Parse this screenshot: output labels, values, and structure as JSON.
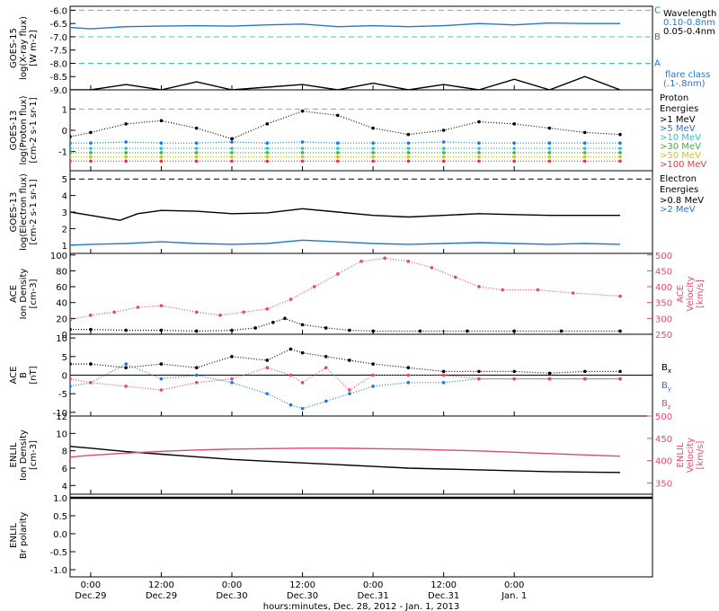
{
  "colors": {
    "black": "#000000",
    "blue": "#1e78d8",
    "cyan": "#1ec8d8",
    "dash_cyan": "#30c8e0",
    "teal": "#00b4b4",
    "green": "#3cb43c",
    "yellow": "#d2c800",
    "orange": "#f08c00",
    "red": "#e03c3c",
    "pink": "#e8466e"
  },
  "x_axis": {
    "label": "hours:minutes, Dec. 28, 2012 - Jan. 1, 2013",
    "range_hours": [
      -3.5,
      95.5
    ],
    "ticks": [
      {
        "hours": 0,
        "time": "0:00",
        "date": "Dec.29"
      },
      {
        "hours": 12,
        "time": "12:00",
        "date": "Dec.29"
      },
      {
        "hours": 24,
        "time": "0:00",
        "date": "Dec.30"
      },
      {
        "hours": 36,
        "time": "12:00",
        "date": "Dec.30"
      },
      {
        "hours": 48,
        "time": "0:00",
        "date": "Dec.31"
      },
      {
        "hours": 60,
        "time": "12:00",
        "date": "Dec.31"
      },
      {
        "hours": 72,
        "time": "0:00",
        "date": "Jan. 1"
      }
    ]
  },
  "legends": {
    "xray": {
      "title": "Wavelength",
      "series": [
        {
          "label": "0.10-0.8nm",
          "color": "#1e78d8"
        },
        {
          "label": "0.05-0.4nm",
          "color": "#000000"
        }
      ],
      "flare_title": "flare class",
      "flare_range": "(.1-.8nm)",
      "flare_levels": [
        {
          "letter": "C",
          "value": -6.0
        },
        {
          "letter": "B",
          "value": -7.0
        },
        {
          "letter": "A",
          "value": -8.0
        }
      ]
    },
    "proton": {
      "title_line1": "Proton",
      "title_line2": "Energies",
      "series": [
        {
          "label": ">1 MeV",
          "color": "#000000"
        },
        {
          "label": ">5 MeV",
          "color": "#1e78d8"
        },
        {
          "label": ">10 MeV",
          "color": "#1ec8d8"
        },
        {
          "label": ">30 MeV",
          "color": "#3cb43c"
        },
        {
          "label": ">50 MeV",
          "color": "#d2c800"
        },
        {
          "label": ">100 MeV",
          "color": "#e03c3c"
        }
      ]
    },
    "electron": {
      "title_line1": "Electron",
      "title_line2": "Energies",
      "series": [
        {
          "label": ">0.8 MeV",
          "color": "#000000"
        },
        {
          "label": ">2 MeV",
          "color": "#1e78d8"
        }
      ]
    },
    "field": {
      "series": [
        {
          "base": "B",
          "sub": "x",
          "color": "#000000"
        },
        {
          "base": "B",
          "sub": "y",
          "color": "#1e78d8"
        },
        {
          "base": "B",
          "sub": "z",
          "color": "#e8466e"
        }
      ]
    }
  },
  "chart_data": [
    {
      "type": "line",
      "id": "xray",
      "ylabel": "GOES-15 log(X-ray flux) [W m-2]",
      "ylim": [
        -9.0,
        -5.85
      ],
      "y_ticks": [
        "-6.0",
        "-6.5",
        "-7.0",
        "-7.5",
        "-8.0",
        "-8.5",
        "-9.0"
      ],
      "y_tick_values": [
        -6.0,
        -6.5,
        -7.0,
        -7.5,
        -8.0,
        -8.5,
        -9.0
      ],
      "reference_lines": [
        -6.0,
        -7.0,
        -8.0
      ],
      "series": [
        {
          "name": "0.10-0.8nm",
          "x": [
            -3.5,
            0,
            6,
            12,
            18,
            24,
            30,
            36,
            42,
            48,
            54,
            60,
            66,
            72,
            78,
            84,
            90
          ],
          "y": [
            -6.65,
            -6.7,
            -6.62,
            -6.6,
            -6.58,
            -6.6,
            -6.55,
            -6.52,
            -6.62,
            -6.58,
            -6.62,
            -6.58,
            -6.5,
            -6.55,
            -6.48,
            -6.5,
            -6.5
          ]
        },
        {
          "name": "0.05-0.4nm",
          "x": [
            -3.5,
            0,
            6,
            12,
            18,
            24,
            30,
            36,
            42,
            48,
            54,
            60,
            66,
            72,
            78,
            84,
            90
          ],
          "y": [
            -9.0,
            -9.0,
            -8.8,
            -9.0,
            -8.7,
            -9.0,
            -8.9,
            -8.8,
            -9.0,
            -8.75,
            -9.0,
            -8.8,
            -9.0,
            -8.6,
            -9.0,
            -8.5,
            -9.0
          ]
        }
      ]
    },
    {
      "type": "scatter",
      "id": "proton",
      "ylabel": "GOES-13 log(Proton flux) [cm-2 s-1 sr-1]",
      "ylim": [
        -1.9,
        1.9
      ],
      "y_ticks": [
        "1",
        "0",
        "-1"
      ],
      "y_tick_values": [
        1,
        0,
        -1
      ],
      "reference_lines": [
        1
      ],
      "series": [
        {
          "name": ">1 MeV",
          "x": [
            -3.5,
            0,
            6,
            12,
            18,
            24,
            30,
            36,
            42,
            48,
            54,
            60,
            66,
            72,
            78,
            84,
            90
          ],
          "y": [
            -0.3,
            -0.1,
            0.3,
            0.45,
            0.1,
            -0.4,
            0.3,
            0.9,
            0.7,
            0.1,
            -0.2,
            0.0,
            0.4,
            0.3,
            0.1,
            -0.1,
            -0.2
          ]
        },
        {
          "name": ">5 MeV",
          "x": [
            -3.5,
            0,
            6,
            12,
            18,
            24,
            30,
            36,
            42,
            48,
            54,
            60,
            66,
            72,
            78,
            84,
            90
          ],
          "y": [
            -0.6,
            -0.6,
            -0.55,
            -0.6,
            -0.6,
            -0.55,
            -0.6,
            -0.55,
            -0.6,
            -0.6,
            -0.6,
            -0.55,
            -0.6,
            -0.6,
            -0.6,
            -0.6,
            -0.6
          ]
        },
        {
          "name": ">10 MeV",
          "x": [
            -3.5,
            0,
            6,
            12,
            18,
            24,
            30,
            36,
            42,
            48,
            54,
            60,
            66,
            72,
            78,
            84,
            90
          ],
          "y": [
            -0.85,
            -0.85,
            -0.85,
            -0.85,
            -0.85,
            -0.85,
            -0.85,
            -0.85,
            -0.85,
            -0.85,
            -0.85,
            -0.85,
            -0.85,
            -0.85,
            -0.85,
            -0.85,
            -0.85
          ]
        },
        {
          "name": ">30 MeV",
          "x": [
            -3.5,
            0,
            6,
            12,
            18,
            24,
            30,
            36,
            42,
            48,
            54,
            60,
            66,
            72,
            78,
            84,
            90
          ],
          "y": [
            -1.05,
            -1.05,
            -1.05,
            -1.05,
            -1.05,
            -1.05,
            -1.05,
            -1.05,
            -1.05,
            -1.05,
            -1.05,
            -1.05,
            -1.05,
            -1.05,
            -1.05,
            -1.05,
            -1.05
          ]
        },
        {
          "name": ">50 MeV",
          "x": [
            -3.5,
            0,
            6,
            12,
            18,
            24,
            30,
            36,
            42,
            48,
            54,
            60,
            66,
            72,
            78,
            84,
            90
          ],
          "y": [
            -1.25,
            -1.25,
            -1.25,
            -1.25,
            -1.25,
            -1.25,
            -1.25,
            -1.25,
            -1.25,
            -1.25,
            -1.25,
            -1.25,
            -1.25,
            -1.25,
            -1.25,
            -1.25,
            -1.25
          ]
        },
        {
          "name": ">100 MeV",
          "x": [
            -3.5,
            0,
            6,
            12,
            18,
            24,
            30,
            36,
            42,
            48,
            54,
            60,
            66,
            72,
            78,
            84,
            90
          ],
          "y": [
            -1.45,
            -1.45,
            -1.45,
            -1.45,
            -1.45,
            -1.45,
            -1.45,
            -1.45,
            -1.45,
            -1.45,
            -1.45,
            -1.45,
            -1.45,
            -1.45,
            -1.45,
            -1.45,
            -1.45
          ]
        }
      ]
    },
    {
      "type": "line",
      "id": "electron",
      "ylabel": "GOES-13 log(Electron flux) [cm-2 s-1 sr-1]",
      "ylim": [
        0.5,
        5.5
      ],
      "y_ticks": [
        "5",
        "4",
        "3",
        "2",
        "1"
      ],
      "y_tick_values": [
        5,
        4,
        3,
        2,
        1
      ],
      "reference_lines": [
        5
      ],
      "series": [
        {
          "name": ">0.8 MeV",
          "x": [
            -3.5,
            0,
            5,
            8,
            12,
            18,
            24,
            30,
            36,
            42,
            48,
            54,
            60,
            66,
            72,
            78,
            84,
            90
          ],
          "y": [
            3.0,
            2.8,
            2.5,
            2.9,
            3.1,
            3.05,
            2.9,
            2.95,
            3.2,
            3.0,
            2.8,
            2.7,
            2.8,
            2.9,
            2.85,
            2.8,
            2.8,
            2.8
          ]
        },
        {
          "name": ">2 MeV",
          "x": [
            -3.5,
            0,
            6,
            12,
            18,
            24,
            30,
            36,
            42,
            48,
            54,
            60,
            66,
            72,
            78,
            84,
            90
          ],
          "y": [
            1.0,
            1.05,
            1.1,
            1.2,
            1.1,
            1.05,
            1.1,
            1.3,
            1.2,
            1.1,
            1.05,
            1.1,
            1.15,
            1.1,
            1.05,
            1.1,
            1.05
          ]
        }
      ]
    },
    {
      "type": "scatter",
      "id": "ace_plasma",
      "ylabel": "ACE Ion Density [cm-3]",
      "ylabel_right": "ACE Velocity [km/s]",
      "ylim": [
        0,
        102
      ],
      "ylim_right": [
        250,
        505
      ],
      "y_ticks": [
        "100",
        "80",
        "60",
        "40",
        "20",
        "0"
      ],
      "y_tick_values": [
        100,
        80,
        60,
        40,
        20,
        0
      ],
      "y_ticks_right": [
        "500",
        "450",
        "400",
        "350",
        "300",
        "250"
      ],
      "y_tick_values_right": [
        500,
        450,
        400,
        350,
        300,
        250
      ],
      "series": [
        {
          "name": "density",
          "axis": "left",
          "x": [
            -3.5,
            0,
            6,
            12,
            18,
            24,
            28,
            31,
            33,
            36,
            40,
            44,
            48,
            56,
            64,
            72,
            80,
            90
          ],
          "y": [
            6,
            6,
            5,
            5,
            4,
            5,
            8,
            15,
            20,
            12,
            8,
            5,
            4,
            4,
            4,
            4,
            4,
            4
          ]
        },
        {
          "name": "velocity",
          "axis": "right",
          "x": [
            -3.5,
            0,
            4,
            8,
            12,
            18,
            22,
            26,
            30,
            34,
            38,
            42,
            46,
            50,
            54,
            58,
            62,
            66,
            70,
            76,
            82,
            90
          ],
          "y": [
            295,
            310,
            320,
            335,
            340,
            320,
            310,
            320,
            330,
            360,
            400,
            440,
            480,
            490,
            480,
            460,
            430,
            400,
            390,
            390,
            380,
            370
          ]
        }
      ]
    },
    {
      "type": "scatter",
      "id": "ace_field",
      "ylabel": "ACE B [nT]",
      "ylim": [
        -11,
        11
      ],
      "y_ticks": [
        "10",
        "5",
        "0",
        "-5",
        "-10"
      ],
      "y_tick_values": [
        10,
        5,
        0,
        -5,
        -10
      ],
      "reference_lines": [
        0
      ],
      "series": [
        {
          "name": "Bx",
          "x": [
            -3.5,
            0,
            6,
            12,
            18,
            24,
            30,
            34,
            36,
            40,
            44,
            48,
            54,
            60,
            66,
            72,
            78,
            84,
            90
          ],
          "y": [
            3,
            3,
            2,
            3,
            2,
            5,
            4,
            7,
            6,
            5,
            4,
            3,
            2,
            1,
            1,
            1,
            0.5,
            1,
            1
          ]
        },
        {
          "name": "By",
          "x": [
            -3.5,
            0,
            6,
            12,
            18,
            24,
            30,
            34,
            36,
            40,
            44,
            48,
            54,
            60,
            66,
            72,
            78,
            84,
            90
          ],
          "y": [
            -3,
            -2,
            3,
            -1,
            0,
            -2,
            -5,
            -8,
            -9,
            -7,
            -5,
            -3,
            -2,
            -2,
            -1,
            -1,
            -1,
            -1,
            -1
          ]
        },
        {
          "name": "Bz",
          "x": [
            -3.5,
            0,
            6,
            12,
            18,
            24,
            30,
            34,
            36,
            40,
            44,
            48,
            54,
            60,
            66,
            72,
            78,
            84,
            90
          ],
          "y": [
            -1,
            -2,
            -3,
            -4,
            -2,
            -1,
            2,
            0,
            -2,
            2,
            -4,
            0,
            0,
            0,
            -1,
            -1,
            -1,
            -1,
            -1
          ]
        }
      ]
    },
    {
      "type": "line",
      "id": "enlil_plasma",
      "ylabel": "ENLIL Ion Density [cm-3]",
      "ylabel_right": "ENLIL Velocity [km/s]",
      "ylim": [
        3,
        12
      ],
      "ylim_right": [
        325,
        500
      ],
      "y_ticks": [
        "12",
        "10",
        "8",
        "6",
        "4"
      ],
      "y_tick_values": [
        12,
        10,
        8,
        6,
        4
      ],
      "y_ticks_right": [
        "500",
        "450",
        "400",
        "350"
      ],
      "y_tick_values_right": [
        500,
        450,
        400,
        350
      ],
      "series": [
        {
          "name": "density",
          "axis": "left",
          "x": [
            -3.5,
            0,
            6,
            12,
            18,
            24,
            30,
            36,
            42,
            48,
            54,
            60,
            66,
            72,
            78,
            84,
            90
          ],
          "y": [
            8.5,
            8.3,
            7.9,
            7.6,
            7.3,
            7.0,
            6.8,
            6.6,
            6.4,
            6.2,
            6.0,
            5.9,
            5.8,
            5.7,
            5.6,
            5.55,
            5.5
          ]
        },
        {
          "name": "velocity",
          "axis": "right",
          "x": [
            -3.5,
            0,
            6,
            12,
            18,
            24,
            30,
            36,
            42,
            48,
            54,
            60,
            66,
            72,
            78,
            84,
            90
          ],
          "y": [
            408,
            412,
            417,
            421,
            424,
            426,
            427,
            428,
            428,
            427,
            426,
            424,
            422,
            419,
            416,
            413,
            410
          ]
        }
      ]
    },
    {
      "type": "line",
      "id": "enlil_polarity",
      "ylabel": "ENLIL Br polarity",
      "ylim": [
        -1.2,
        1.1
      ],
      "y_ticks": [
        "1.0",
        "0.5",
        "0.0",
        "-0.5",
        "-1.0"
      ],
      "y_tick_values": [
        1.0,
        0.5,
        0.0,
        -0.5,
        -1.0
      ],
      "series": [
        {
          "name": "polarity",
          "x": [
            -3.5,
            0,
            12,
            24,
            36,
            48,
            60,
            72,
            84,
            95.5
          ],
          "y": [
            1,
            1,
            1,
            1,
            1,
            1,
            1,
            1,
            1,
            1
          ]
        }
      ]
    }
  ]
}
